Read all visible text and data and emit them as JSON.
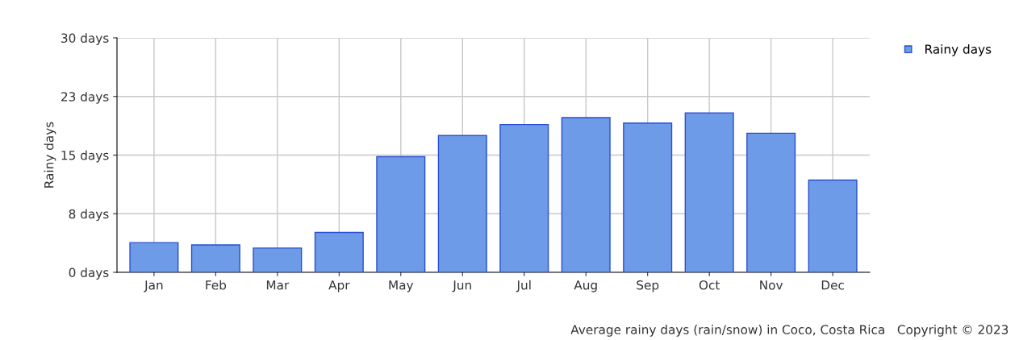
{
  "chart_data": {
    "type": "bar",
    "ylabel": "Rainy days",
    "categories": [
      "Jan",
      "Feb",
      "Mar",
      "Apr",
      "May",
      "Jun",
      "Jul",
      "Aug",
      "Sep",
      "Oct",
      "Nov",
      "Dec"
    ],
    "series": [
      {
        "name": "Rainy days",
        "color": "#6d9be8",
        "values": [
          3.8,
          3.5,
          3.1,
          5.1,
          14.8,
          17.5,
          18.9,
          19.8,
          19.1,
          20.4,
          17.8,
          11.8
        ]
      }
    ],
    "ylim": [
      0,
      30
    ],
    "yticks": [
      {
        "value": 0,
        "label": "0 days"
      },
      {
        "value": 7.5,
        "label": "8 days"
      },
      {
        "value": 15,
        "label": "15 days"
      },
      {
        "value": 22.5,
        "label": "23 days"
      },
      {
        "value": 30,
        "label": "30 days"
      }
    ],
    "grid": true,
    "legend": "top right",
    "annotations": [
      "Average rainy days (rain/snow) in Coco, Costa Rica   Copyright © 2023"
    ]
  }
}
